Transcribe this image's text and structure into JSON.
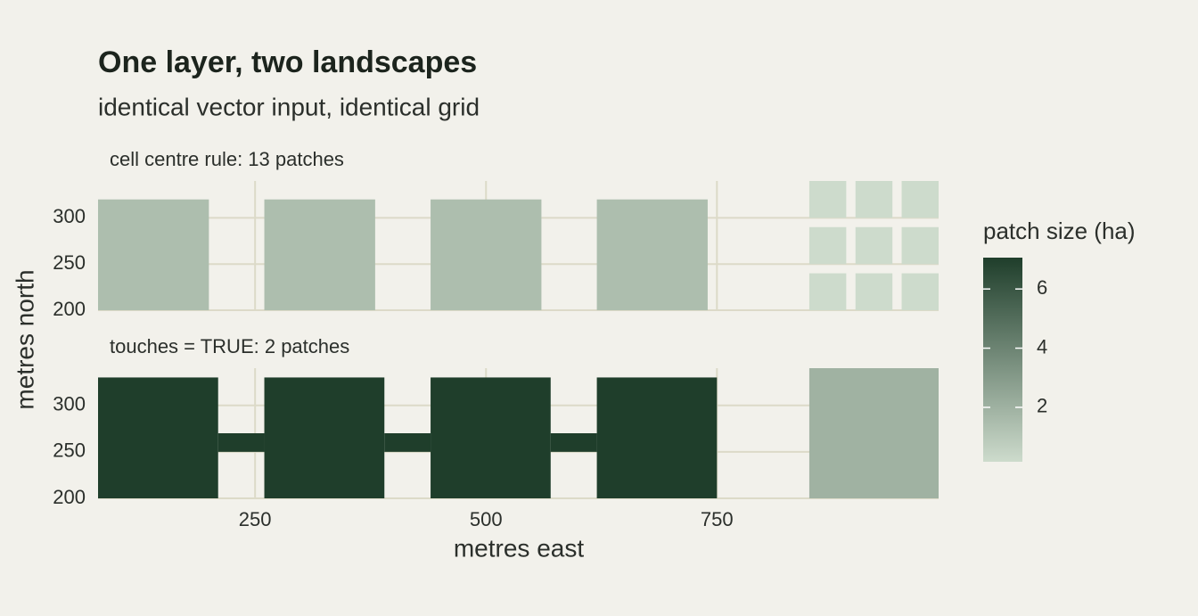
{
  "chart_data": {
    "type": "tile",
    "title": "One layer, two landscapes",
    "subtitle": "identical vector input, identical grid",
    "x_label": "metres east",
    "y_label": "metres north",
    "xlim": [
      80,
      990
    ],
    "xticks": [
      250,
      500,
      750
    ],
    "ylim": [
      200,
      340
    ],
    "yticks": [
      200,
      250,
      300
    ],
    "grid": true,
    "legend": {
      "title": "patch size (ha)",
      "limits": [
        0.16,
        7.06
      ],
      "ticks": [
        2,
        4,
        6
      ],
      "colors": [
        "#cddbcc",
        "#1f3e2b"
      ]
    },
    "facets": [
      {
        "title": "cell centre rule: 13 patches",
        "patches": [
          {
            "value": 1.44,
            "cells": [
              [
                80,
                200,
                200,
                320
              ]
            ]
          },
          {
            "value": 1.44,
            "cells": [
              [
                260,
                380,
                200,
                320
              ]
            ]
          },
          {
            "value": 1.44,
            "cells": [
              [
                440,
                560,
                200,
                320
              ]
            ]
          },
          {
            "value": 1.44,
            "cells": [
              [
                620,
                740,
                200,
                320
              ]
            ]
          },
          {
            "value": 0.16,
            "cells": [
              [
                850,
                890,
                300,
                340
              ]
            ]
          },
          {
            "value": 0.16,
            "cells": [
              [
                900,
                940,
                300,
                340
              ]
            ]
          },
          {
            "value": 0.16,
            "cells": [
              [
                950,
                990,
                300,
                340
              ]
            ]
          },
          {
            "value": 0.16,
            "cells": [
              [
                850,
                890,
                250,
                290
              ]
            ]
          },
          {
            "value": 0.16,
            "cells": [
              [
                900,
                940,
                250,
                290
              ]
            ]
          },
          {
            "value": 0.16,
            "cells": [
              [
                950,
                990,
                250,
                290
              ]
            ]
          },
          {
            "value": 0.16,
            "cells": [
              [
                850,
                890,
                200,
                240
              ]
            ]
          },
          {
            "value": 0.16,
            "cells": [
              [
                900,
                940,
                200,
                240
              ]
            ]
          },
          {
            "value": 0.16,
            "cells": [
              [
                950,
                990,
                200,
                240
              ]
            ]
          }
        ]
      },
      {
        "title": "touches = TRUE: 2 patches",
        "patches": [
          {
            "value": 7.06,
            "cells": [
              [
                80,
                210,
                200,
                330
              ],
              [
                260,
                390,
                200,
                330
              ],
              [
                440,
                570,
                200,
                330
              ],
              [
                620,
                750,
                200,
                330
              ],
              [
                210,
                260,
                250,
                270
              ],
              [
                390,
                440,
                250,
                270
              ],
              [
                570,
                620,
                250,
                270
              ]
            ]
          },
          {
            "value": 1.96,
            "cells": [
              [
                850,
                990,
                200,
                340
              ]
            ]
          }
        ]
      }
    ]
  }
}
